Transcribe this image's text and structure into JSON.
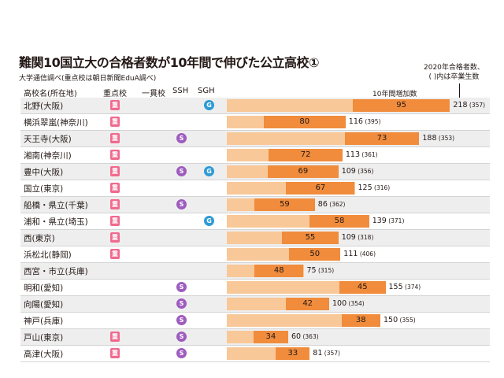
{
  "title": "難関10国立大の合格者数が10年間で伸びた公立高校①",
  "subtitle": "大学通信調べ(重点校は朝日新聞EduA調べ)",
  "note": {
    "line1": "2020年合格者数、",
    "line2": "( )内は卒業生数"
  },
  "headers": {
    "school": "高校名(所在地)",
    "juten": "重点校",
    "ikkan": "一貫校",
    "ssh": "SSH",
    "sgh": "SGH",
    "increase": "10年間増加数"
  },
  "badge_glyphs": {
    "juten": "重",
    "ssh": "S",
    "sgh": "G"
  },
  "colors": {
    "total_bar": "#f8c898",
    "increase_bar": "#f08c3c",
    "juten": "#f06a8e",
    "ssh": "#9e5cbf",
    "sgh": "#2e9bd6"
  },
  "chart_data": {
    "type": "bar",
    "orientation": "horizontal",
    "series": [
      {
        "name": "2020年合格者数",
        "values": [
          218,
          116,
          188,
          113,
          109,
          125,
          86,
          139,
          109,
          111,
          75,
          155,
          100,
          150,
          60,
          81
        ]
      },
      {
        "name": "10年間増加数",
        "values": [
          95,
          80,
          73,
          72,
          69,
          67,
          59,
          58,
          55,
          50,
          48,
          45,
          42,
          38,
          34,
          33
        ]
      }
    ],
    "rows": [
      {
        "school": "北野(大阪)",
        "total": 218,
        "increase": 95,
        "graduates": 357,
        "juten": true,
        "ikkan": false,
        "ssh": false,
        "sgh": true
      },
      {
        "school": "横浜翠嵐(神奈川)",
        "total": 116,
        "increase": 80,
        "graduates": 395,
        "juten": true,
        "ikkan": false,
        "ssh": false,
        "sgh": false
      },
      {
        "school": "天王寺(大阪)",
        "total": 188,
        "increase": 73,
        "graduates": 353,
        "juten": true,
        "ikkan": false,
        "ssh": true,
        "sgh": false
      },
      {
        "school": "湘南(神奈川)",
        "total": 113,
        "increase": 72,
        "graduates": 361,
        "juten": true,
        "ikkan": false,
        "ssh": false,
        "sgh": false
      },
      {
        "school": "豊中(大阪)",
        "total": 109,
        "increase": 69,
        "graduates": 356,
        "juten": true,
        "ikkan": false,
        "ssh": true,
        "sgh": true
      },
      {
        "school": "国立(東京)",
        "total": 125,
        "increase": 67,
        "graduates": 316,
        "juten": true,
        "ikkan": false,
        "ssh": false,
        "sgh": false
      },
      {
        "school": "船橋・県立(千葉)",
        "total": 86,
        "increase": 59,
        "graduates": 362,
        "juten": true,
        "ikkan": false,
        "ssh": true,
        "sgh": false
      },
      {
        "school": "浦和・県立(埼玉)",
        "total": 139,
        "increase": 58,
        "graduates": 371,
        "juten": true,
        "ikkan": false,
        "ssh": false,
        "sgh": true
      },
      {
        "school": "西(東京)",
        "total": 109,
        "increase": 55,
        "graduates": 318,
        "juten": true,
        "ikkan": false,
        "ssh": false,
        "sgh": false
      },
      {
        "school": "浜松北(静岡)",
        "total": 111,
        "increase": 50,
        "graduates": 406,
        "juten": true,
        "ikkan": false,
        "ssh": false,
        "sgh": false
      },
      {
        "school": "西宮・市立(兵庫)",
        "total": 75,
        "increase": 48,
        "graduates": 315,
        "juten": false,
        "ikkan": false,
        "ssh": false,
        "sgh": false
      },
      {
        "school": "明和(愛知)",
        "total": 155,
        "increase": 45,
        "graduates": 374,
        "juten": false,
        "ikkan": false,
        "ssh": true,
        "sgh": false
      },
      {
        "school": "向陽(愛知)",
        "total": 100,
        "increase": 42,
        "graduates": 354,
        "juten": false,
        "ikkan": false,
        "ssh": true,
        "sgh": false
      },
      {
        "school": "神戸(兵庫)",
        "total": 150,
        "increase": 38,
        "graduates": 355,
        "juten": false,
        "ikkan": false,
        "ssh": true,
        "sgh": false
      },
      {
        "school": "戸山(東京)",
        "total": 60,
        "increase": 34,
        "graduates": 363,
        "juten": true,
        "ikkan": false,
        "ssh": true,
        "sgh": false
      },
      {
        "school": "高津(大阪)",
        "total": 81,
        "increase": 33,
        "graduates": 357,
        "juten": true,
        "ikkan": false,
        "ssh": true,
        "sgh": false
      }
    ]
  }
}
